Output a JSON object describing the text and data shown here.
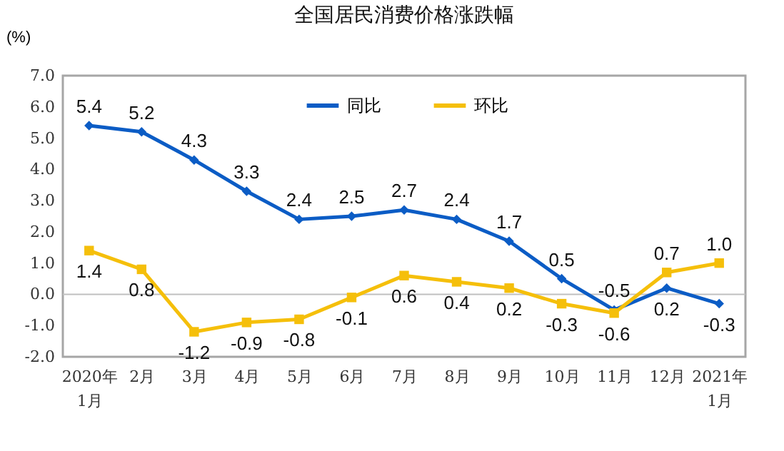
{
  "chart_data": {
    "type": "line",
    "title": "全国居民消费价格涨跌幅",
    "ylabel": "(%)",
    "categories": [
      "2020年\n1月",
      "2月",
      "3月",
      "4月",
      "5月",
      "6月",
      "7月",
      "8月",
      "9月",
      "10月",
      "11月",
      "12月",
      "2021年\n1月"
    ],
    "series": [
      {
        "name": "同比",
        "color": "#0b5cc5",
        "marker": "diamond",
        "values": [
          5.4,
          5.2,
          4.3,
          3.3,
          2.4,
          2.5,
          2.7,
          2.4,
          1.7,
          0.5,
          -0.5,
          0.2,
          -0.3
        ],
        "value_labels": [
          "5.4",
          "5.2",
          "4.3",
          "3.3",
          "2.4",
          "2.5",
          "2.7",
          "2.4",
          "1.7",
          "0.5",
          "-0.5",
          "0.2",
          "-0.3"
        ]
      },
      {
        "name": "环比",
        "color": "#f5bf0a",
        "marker": "square",
        "values": [
          1.4,
          0.8,
          -1.2,
          -0.9,
          -0.8,
          -0.1,
          0.6,
          0.4,
          0.2,
          -0.3,
          -0.6,
          0.7,
          1.0
        ],
        "value_labels": [
          "1.4",
          "0.8",
          "-1.2",
          "-0.9",
          "-0.8",
          "-0.1",
          "0.6",
          "0.4",
          "0.2",
          "-0.3",
          "-0.6",
          "0.7",
          "1.0"
        ]
      }
    ],
    "ylim": [
      -2,
      7
    ],
    "yticks": [
      {
        "value": -2,
        "label": "-2.0"
      },
      {
        "value": -1,
        "label": "-1.0"
      },
      {
        "value": 0,
        "label": "0.0"
      },
      {
        "value": 1,
        "label": "1.0"
      },
      {
        "value": 2,
        "label": "2.0"
      },
      {
        "value": 3,
        "label": "3.0"
      },
      {
        "value": 4,
        "label": "4.0"
      },
      {
        "value": 5,
        "label": "5.0"
      },
      {
        "value": 6,
        "label": "6.0"
      },
      {
        "value": 7,
        "label": "7.0"
      }
    ],
    "ref_lines": [
      {
        "axis": "y",
        "value": 0,
        "color": "#c0c0c0"
      }
    ],
    "legend": "top",
    "line_style": "solid"
  }
}
